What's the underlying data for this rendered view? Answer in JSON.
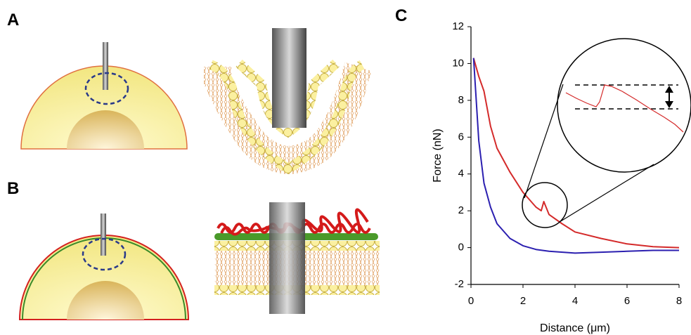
{
  "panels": [
    "A",
    "B",
    "C"
  ],
  "chart_data": {
    "type": "line",
    "x_label": "Distance (μm)",
    "y_label": "Force (nN)",
    "xlim": [
      0,
      8
    ],
    "xticks": [
      0,
      2,
      4,
      6,
      8
    ],
    "ylim": [
      -2,
      12
    ],
    "yticks": [
      -2,
      0,
      2,
      4,
      6,
      8,
      10,
      12
    ],
    "series": [
      {
        "color": "#d42a2a",
        "x": [
          0.1,
          0.3,
          0.5,
          0.75,
          1,
          1.5,
          2,
          2.5,
          2.7,
          2.8,
          3,
          3.5,
          4,
          5,
          6,
          7,
          8
        ],
        "values": [
          10.3,
          9.3,
          8.5,
          6.6,
          5.4,
          4.1,
          3.0,
          2.2,
          2.0,
          2.5,
          1.8,
          1.3,
          0.85,
          0.5,
          0.2,
          0.05,
          0
        ]
      },
      {
        "color": "#2b1fb0",
        "x": [
          0.1,
          0.3,
          0.5,
          0.75,
          1,
          1.5,
          2,
          2.5,
          3,
          4,
          5,
          6,
          7,
          8
        ],
        "values": [
          10.3,
          5.8,
          3.5,
          2.2,
          1.3,
          0.5,
          0.1,
          -0.1,
          -0.2,
          -0.3,
          -0.25,
          -0.2,
          -0.15,
          -0.15
        ]
      }
    ]
  }
}
